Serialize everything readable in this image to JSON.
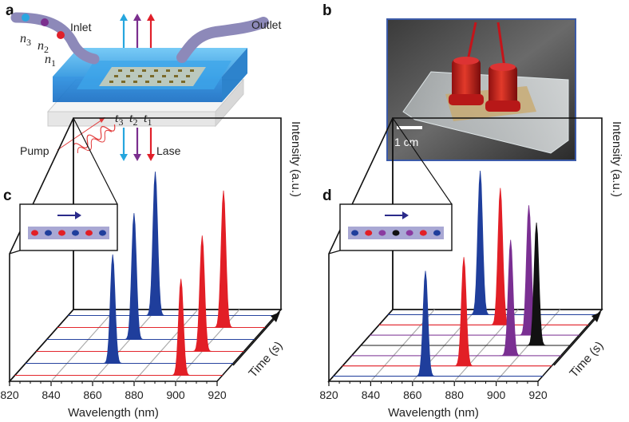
{
  "panel_labels": [
    "a",
    "b",
    "c",
    "d"
  ],
  "panel_a": {
    "inlet_label": "Inlet",
    "outlet_label": "Outlet",
    "pump_label": "Pump",
    "lase_label": "Lase",
    "n_labels": [
      "n3",
      "n2",
      "n1"
    ],
    "t_labels": [
      "t3",
      "t2",
      "t1"
    ]
  },
  "panel_b": {
    "scale_label": "1 cm"
  },
  "chart_data": [
    {
      "type": "line",
      "panel": "c",
      "xlabel": "Wavelength (nm)",
      "ylabel": "Intensity (a.u.)",
      "zlabel": "Time (s)",
      "x_ticks": [
        "820",
        "840",
        "860",
        "880",
        "900",
        "920"
      ],
      "xlim": [
        820,
        920
      ],
      "inset_sequence": [
        "red",
        "blue",
        "red",
        "blue",
        "red",
        "blue"
      ],
      "series": [
        {
          "color": "#e21f26",
          "peak": 900,
          "height": 0.55
        },
        {
          "color": "#1f3e9c",
          "peak": 862,
          "height": 0.62
        },
        {
          "color": "#e21f26",
          "peak": 900,
          "height": 0.66
        },
        {
          "color": "#1f3e9c",
          "peak": 862,
          "height": 0.72
        },
        {
          "color": "#e21f26",
          "peak": 900,
          "height": 0.78
        },
        {
          "color": "#1f3e9c",
          "peak": 862,
          "height": 0.82
        }
      ]
    },
    {
      "type": "line",
      "panel": "d",
      "xlabel": "Wavelength (nm)",
      "ylabel": "Intensity (a.u.)",
      "zlabel": "Time (s)",
      "x_ticks": [
        "820",
        "840",
        "860",
        "880",
        "900",
        "920"
      ],
      "xlim": [
        820,
        920
      ],
      "inset_sequence": [
        "blue",
        "red",
        "purple",
        "black",
        "purple",
        "red",
        "blue"
      ],
      "series": [
        {
          "color": "#1f3e9c",
          "peak": 864,
          "height": 0.6
        },
        {
          "color": "#e21f26",
          "peak": 878,
          "height": 0.62
        },
        {
          "color": "#7a2f92",
          "peak": 896,
          "height": 0.66
        },
        {
          "color": "#111111",
          "peak": 904,
          "height": 0.7
        },
        {
          "color": "#7a2f92",
          "peak": 896,
          "height": 0.74
        },
        {
          "color": "#e21f26",
          "peak": 878,
          "height": 0.78
        },
        {
          "color": "#1f3e9c",
          "peak": 864,
          "height": 0.82
        }
      ]
    }
  ]
}
